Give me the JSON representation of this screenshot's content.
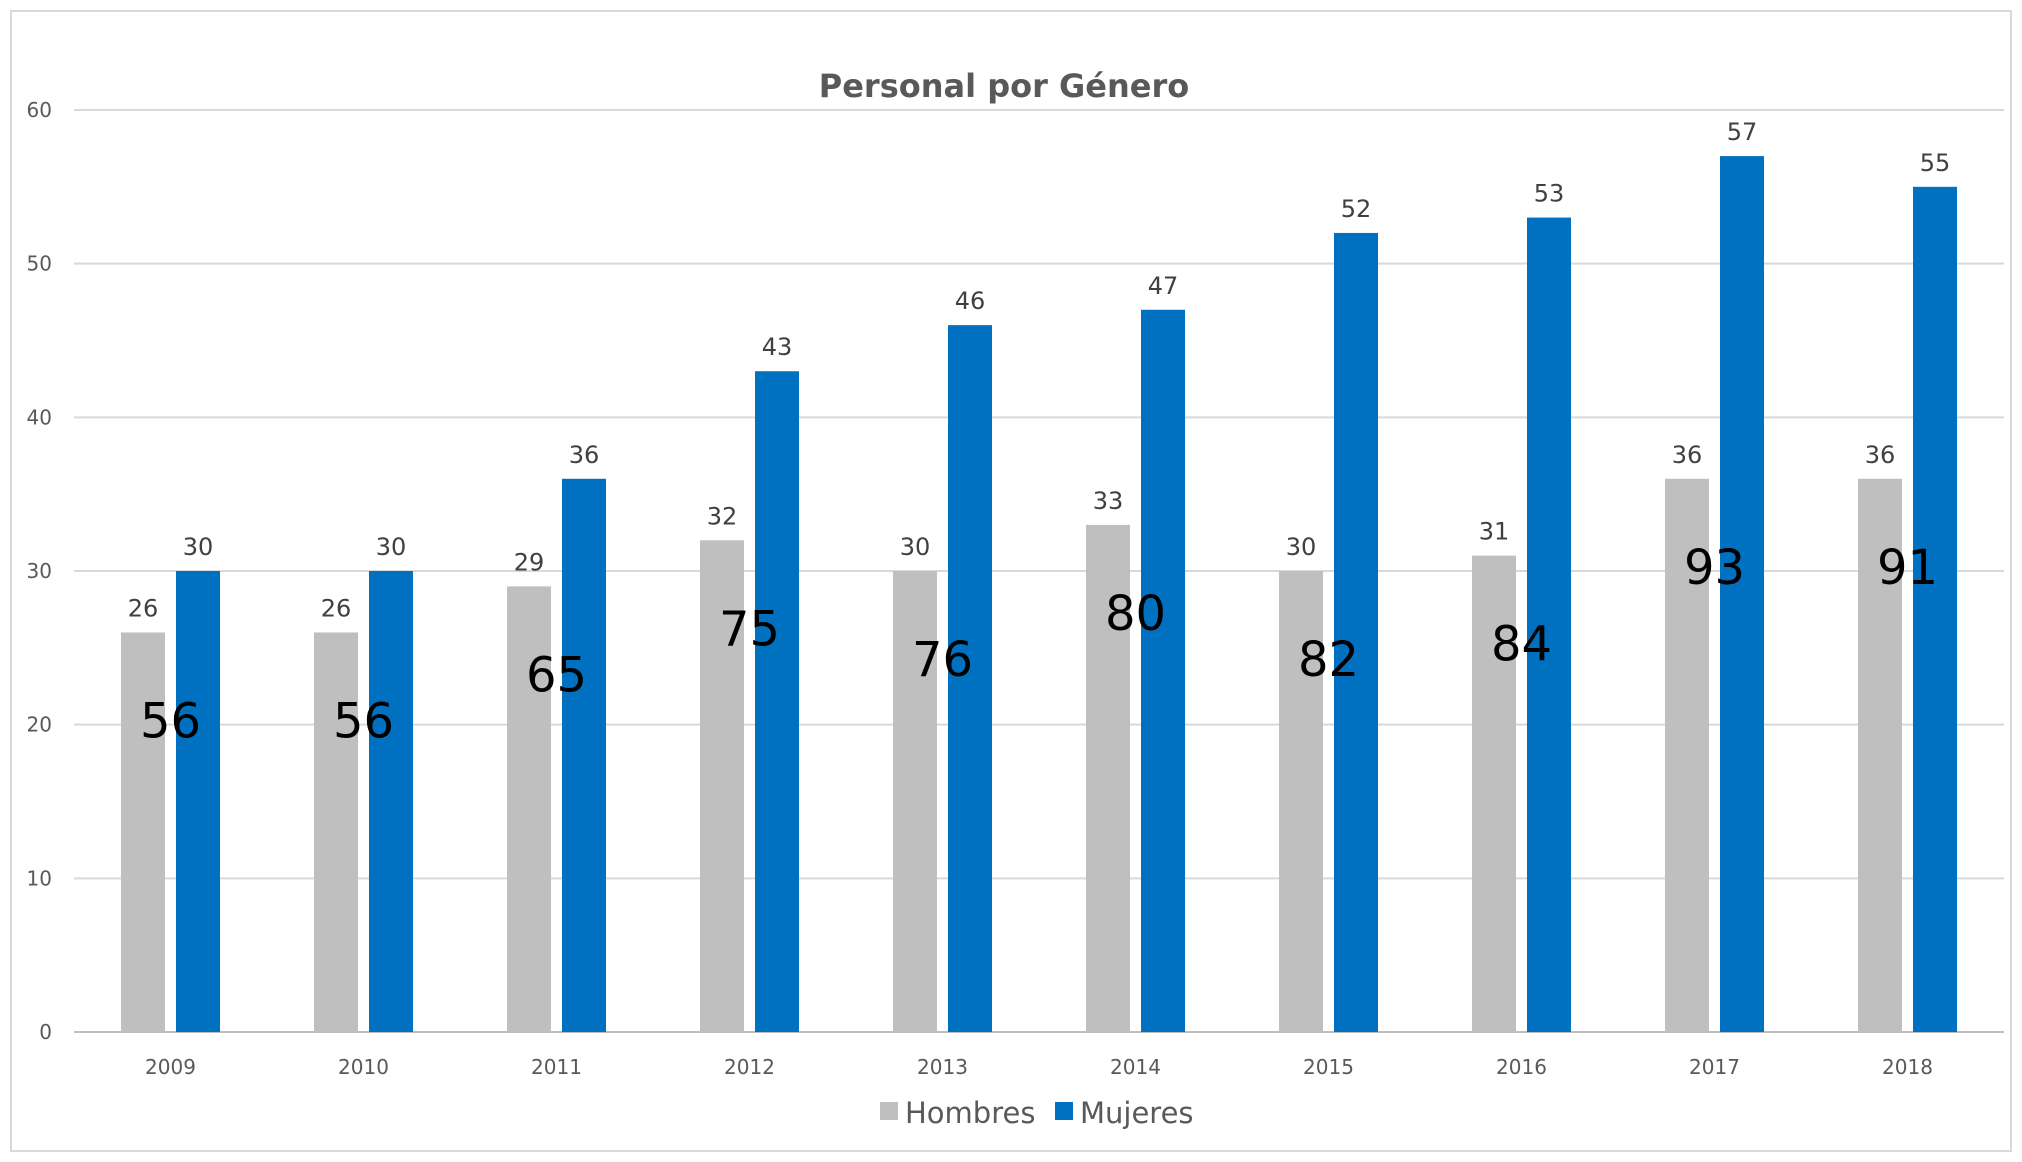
{
  "chart_data": {
    "type": "bar",
    "title": "Personal por Género",
    "xlabel": "",
    "ylabel": "",
    "categories": [
      "2009",
      "2010",
      "2011",
      "2012",
      "2013",
      "2014",
      "2015",
      "2016",
      "2017",
      "2018"
    ],
    "series": [
      {
        "name": "Hombres",
        "color": "#bfbfbf",
        "values": [
          26,
          26,
          29,
          32,
          30,
          33,
          30,
          31,
          36,
          36
        ]
      },
      {
        "name": "Mujeres",
        "color": "#0070c0",
        "values": [
          30,
          30,
          36,
          43,
          46,
          47,
          52,
          53,
          57,
          55
        ]
      }
    ],
    "totals": [
      56,
      56,
      65,
      75,
      76,
      80,
      82,
      84,
      93,
      91
    ],
    "ylim": [
      0,
      60
    ],
    "yticks": [
      0,
      10,
      20,
      30,
      40,
      50,
      60
    ],
    "grid": true,
    "legend": "bottom"
  }
}
